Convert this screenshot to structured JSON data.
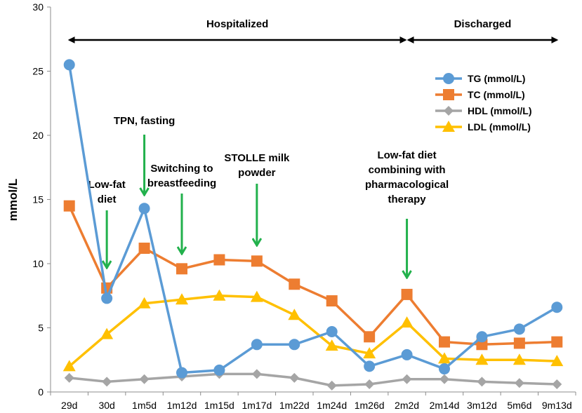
{
  "chart_data": {
    "type": "line",
    "title": "",
    "xlabel": "",
    "ylabel": "mmol/L",
    "ylim": [
      0,
      30
    ],
    "yticks": [
      "0",
      "5",
      "10",
      "15",
      "20",
      "25",
      "30"
    ],
    "categories": [
      "29d",
      "30d",
      "1m5d",
      "1m12d",
      "1m15d",
      "1m17d",
      "1m22d",
      "1m24d",
      "1m26d",
      "2m2d",
      "2m14d",
      "3m12d",
      "5m6d",
      "9m13d"
    ],
    "series": [
      {
        "name": "TG (mmol/L)",
        "color": "#5b9bd5",
        "marker": "circle",
        "values": [
          25.5,
          7.3,
          14.3,
          1.5,
          1.7,
          3.7,
          3.7,
          4.7,
          2.0,
          2.9,
          1.8,
          4.3,
          4.9,
          6.6
        ]
      },
      {
        "name": "TC (mmol/L)",
        "color": "#ed7d31",
        "marker": "square",
        "values": [
          14.5,
          8.1,
          11.2,
          9.6,
          10.3,
          10.2,
          8.4,
          7.1,
          4.3,
          7.6,
          3.9,
          3.7,
          3.8,
          3.9
        ]
      },
      {
        "name": "HDL (mmol/L)",
        "color": "#a5a5a5",
        "marker": "diamond",
        "values": [
          1.1,
          0.8,
          1.0,
          1.2,
          1.4,
          1.4,
          1.1,
          0.5,
          0.6,
          1.0,
          1.0,
          0.8,
          0.7,
          0.6
        ]
      },
      {
        "name": "LDL (mmol/L)",
        "color": "#ffc000",
        "marker": "triangle",
        "values": [
          2.0,
          4.5,
          6.9,
          7.2,
          7.5,
          7.4,
          6.0,
          3.6,
          3.0,
          5.4,
          2.6,
          2.5,
          2.5,
          2.4
        ]
      }
    ],
    "legend_position": "top-right",
    "phases": [
      {
        "label": "Hospitalized",
        "from_category": "29d",
        "to_category": "2m2d"
      },
      {
        "label": "Discharged",
        "from_category": "2m2d",
        "to_category": "9m13d"
      }
    ],
    "annotations": [
      {
        "lines": [
          "Low-fat",
          "diet"
        ],
        "category": "30d",
        "arrow_color": "#22b14c"
      },
      {
        "lines": [
          "TPN, fasting"
        ],
        "category": "1m5d",
        "arrow_color": "#22b14c"
      },
      {
        "lines": [
          "Switching to",
          "breastfeeding"
        ],
        "category": "1m12d",
        "arrow_color": "#22b14c"
      },
      {
        "lines": [
          "STOLLE milk",
          "powder"
        ],
        "category": "1m17d",
        "arrow_color": "#22b14c"
      },
      {
        "lines": [
          "Low-fat diet",
          "combining with",
          "pharmacological",
          "therapy"
        ],
        "category": "2m2d",
        "arrow_color": "#22b14c"
      }
    ]
  }
}
